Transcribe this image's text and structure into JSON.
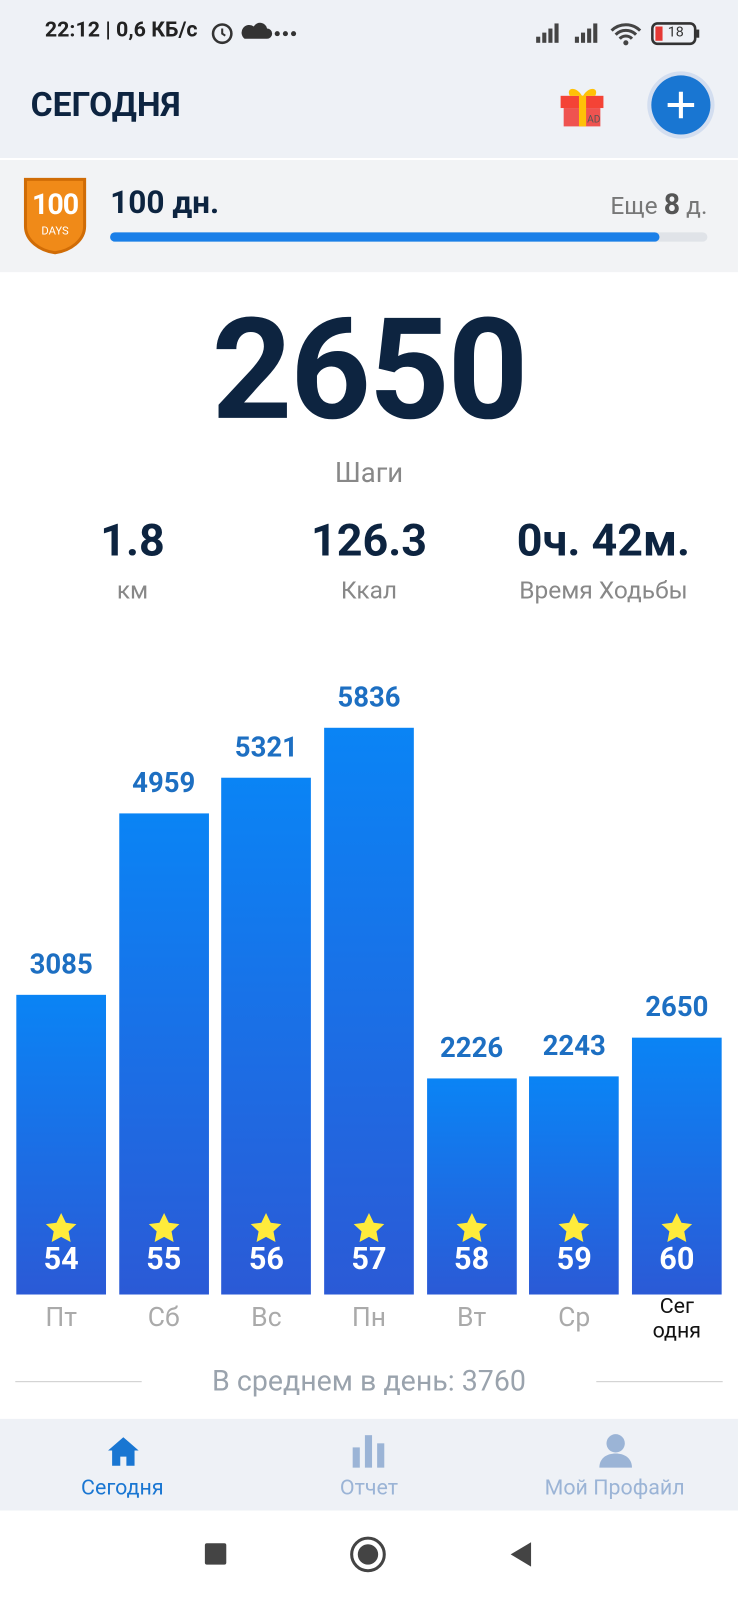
{
  "status_bar": {
    "time": "22:12",
    "speed": "0,6 КБ/с",
    "battery": "18"
  },
  "header": {
    "title": "СЕГОДНЯ",
    "gift_badge": "AD"
  },
  "streak": {
    "badge_number": "100",
    "badge_text": "DAYS",
    "title": "100 дн.",
    "remaining_prefix": "Еще",
    "remaining_days": "8",
    "remaining_suffix": "д.",
    "progress": 92
  },
  "summary": {
    "steps": "2650",
    "steps_label": "Шаги",
    "stats": [
      {
        "value": "1.8",
        "label": "км"
      },
      {
        "value": "126.3",
        "label": "Ккал"
      },
      {
        "value": "0ч. 42м.",
        "label": "Время Ходьбы"
      }
    ]
  },
  "chart_data": {
    "type": "bar",
    "categories": [
      "Пт",
      "Сб",
      "Вс",
      "Пн",
      "Вт",
      "Ср",
      "Сег\nодня"
    ],
    "values": [
      3085,
      4959,
      5321,
      5836,
      2226,
      2243,
      2650
    ],
    "day_labels": [
      54,
      55,
      56,
      57,
      58,
      59,
      60
    ],
    "color": "#0a84f5"
  },
  "average": "В среднем в день: 3760",
  "nav": {
    "tabs": [
      "Сегодня",
      "Отчет",
      "Мой Профайл"
    ]
  }
}
